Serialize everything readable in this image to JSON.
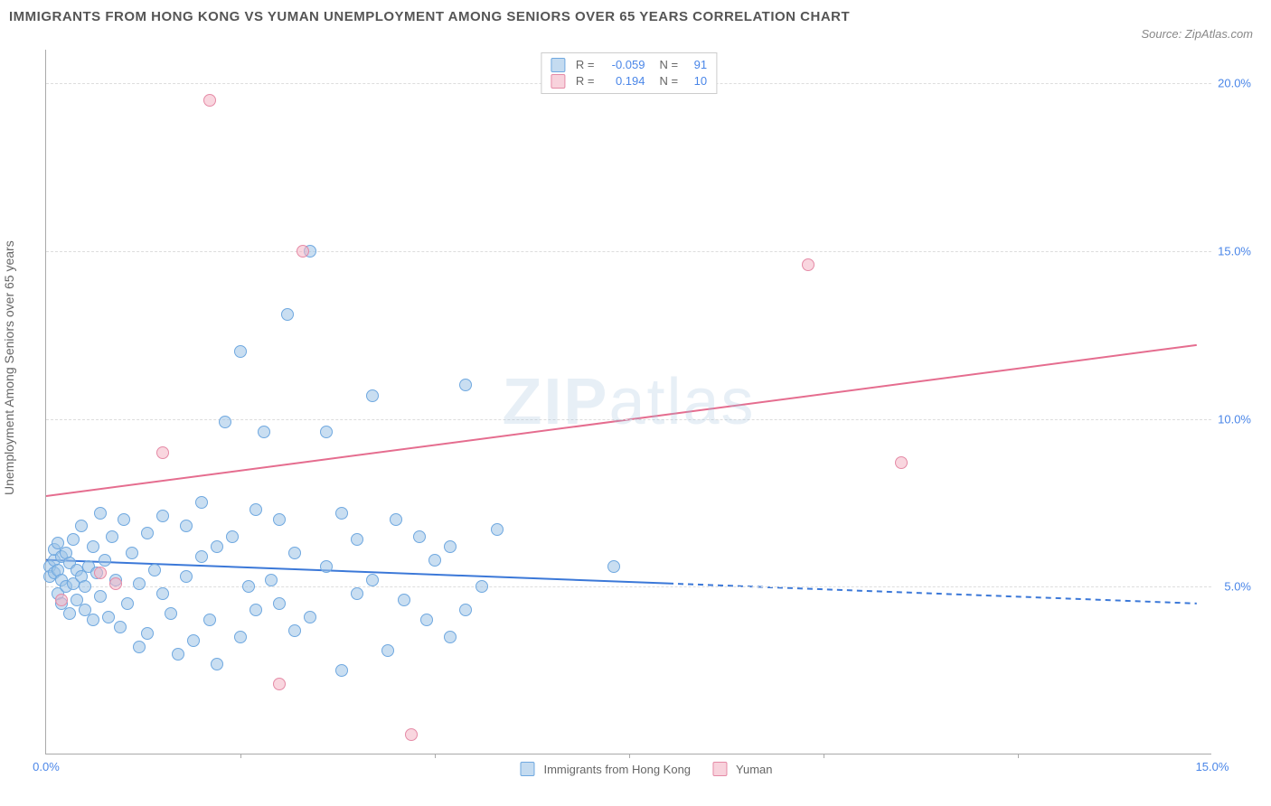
{
  "title": "IMMIGRANTS FROM HONG KONG VS YUMAN UNEMPLOYMENT AMONG SENIORS OVER 65 YEARS CORRELATION CHART",
  "source": "Source: ZipAtlas.com",
  "watermark_a": "ZIP",
  "watermark_b": "atlas",
  "chart": {
    "type": "scatter",
    "background_color": "#ffffff",
    "grid_color": "#dddddd",
    "axis_color": "#aaaaaa",
    "tick_color": "#4a86e8",
    "tick_fontsize": 13,
    "ylabel": "Unemployment Among Seniors over 65 years",
    "ylabel_fontsize": 14,
    "ylabel_color": "#666666",
    "xlim": [
      0,
      15
    ],
    "ylim": [
      0,
      21
    ],
    "yticks": [
      5.0,
      10.0,
      15.0,
      20.0
    ],
    "ytick_labels": [
      "5.0%",
      "10.0%",
      "15.0%",
      "20.0%"
    ],
    "xticks": [
      0.0,
      15.0
    ],
    "xtick_labels": [
      "0.0%",
      "15.0%"
    ],
    "xtick_minor": [
      2.5,
      5.0,
      7.5,
      10.0,
      12.5
    ],
    "marker_size": 14,
    "series": {
      "blue": {
        "label": "Immigrants from Hong Kong",
        "color": "#9dc3e6",
        "border": "#6fa8e0",
        "R": "-0.059",
        "N": "91",
        "trend": {
          "x1": 0,
          "y1": 5.8,
          "x2": 14.8,
          "y2": 4.5,
          "solid_until_x": 8,
          "color": "#3b78d8",
          "width": 2
        },
        "points": [
          [
            0.05,
            5.6
          ],
          [
            0.05,
            5.3
          ],
          [
            0.1,
            5.8
          ],
          [
            0.1,
            5.4
          ],
          [
            0.1,
            6.1
          ],
          [
            0.15,
            5.5
          ],
          [
            0.15,
            4.8
          ],
          [
            0.15,
            6.3
          ],
          [
            0.2,
            5.2
          ],
          [
            0.2,
            5.9
          ],
          [
            0.2,
            4.5
          ],
          [
            0.25,
            6.0
          ],
          [
            0.25,
            5.0
          ],
          [
            0.3,
            5.7
          ],
          [
            0.3,
            4.2
          ],
          [
            0.35,
            6.4
          ],
          [
            0.35,
            5.1
          ],
          [
            0.4,
            4.6
          ],
          [
            0.4,
            5.5
          ],
          [
            0.45,
            5.3
          ],
          [
            0.45,
            6.8
          ],
          [
            0.5,
            5.0
          ],
          [
            0.5,
            4.3
          ],
          [
            0.55,
            5.6
          ],
          [
            0.6,
            4.0
          ],
          [
            0.6,
            6.2
          ],
          [
            0.65,
            5.4
          ],
          [
            0.7,
            4.7
          ],
          [
            0.7,
            7.2
          ],
          [
            0.75,
            5.8
          ],
          [
            0.8,
            4.1
          ],
          [
            0.85,
            6.5
          ],
          [
            0.9,
            5.2
          ],
          [
            0.95,
            3.8
          ],
          [
            1.0,
            7.0
          ],
          [
            1.05,
            4.5
          ],
          [
            1.1,
            6.0
          ],
          [
            1.2,
            3.2
          ],
          [
            1.2,
            5.1
          ],
          [
            1.3,
            3.6
          ],
          [
            1.3,
            6.6
          ],
          [
            1.4,
            5.5
          ],
          [
            1.5,
            4.8
          ],
          [
            1.5,
            7.1
          ],
          [
            1.6,
            4.2
          ],
          [
            1.7,
            3.0
          ],
          [
            1.8,
            5.3
          ],
          [
            1.8,
            6.8
          ],
          [
            1.9,
            3.4
          ],
          [
            2.0,
            5.9
          ],
          [
            2.0,
            7.5
          ],
          [
            2.1,
            4.0
          ],
          [
            2.2,
            6.2
          ],
          [
            2.2,
            2.7
          ],
          [
            2.3,
            9.9
          ],
          [
            2.4,
            6.5
          ],
          [
            2.5,
            3.5
          ],
          [
            2.5,
            12.0
          ],
          [
            2.6,
            5.0
          ],
          [
            2.7,
            4.3
          ],
          [
            2.7,
            7.3
          ],
          [
            2.8,
            9.6
          ],
          [
            2.9,
            5.2
          ],
          [
            3.0,
            4.5
          ],
          [
            3.0,
            7.0
          ],
          [
            3.1,
            13.1
          ],
          [
            3.2,
            6.0
          ],
          [
            3.2,
            3.7
          ],
          [
            3.4,
            15.0
          ],
          [
            3.4,
            4.1
          ],
          [
            3.6,
            5.6
          ],
          [
            3.6,
            9.6
          ],
          [
            3.8,
            7.2
          ],
          [
            3.8,
            2.5
          ],
          [
            4.0,
            4.8
          ],
          [
            4.0,
            6.4
          ],
          [
            4.2,
            5.2
          ],
          [
            4.2,
            10.7
          ],
          [
            4.4,
            3.1
          ],
          [
            4.5,
            7.0
          ],
          [
            4.6,
            4.6
          ],
          [
            4.8,
            6.5
          ],
          [
            4.9,
            4.0
          ],
          [
            5.0,
            5.8
          ],
          [
            5.2,
            6.2
          ],
          [
            5.2,
            3.5
          ],
          [
            5.4,
            4.3
          ],
          [
            5.4,
            11.0
          ],
          [
            5.6,
            5.0
          ],
          [
            5.8,
            6.7
          ],
          [
            7.3,
            5.6
          ]
        ]
      },
      "pink": {
        "label": "Yuman",
        "color": "#f4b4c4",
        "border": "#e58aa6",
        "R": "0.194",
        "N": "10",
        "trend": {
          "x1": 0,
          "y1": 7.7,
          "x2": 14.8,
          "y2": 12.2,
          "color": "#e56d8f",
          "width": 2
        },
        "points": [
          [
            0.2,
            4.6
          ],
          [
            0.7,
            5.4
          ],
          [
            0.9,
            5.1
          ],
          [
            1.5,
            9.0
          ],
          [
            2.1,
            19.5
          ],
          [
            3.0,
            2.1
          ],
          [
            3.3,
            15.0
          ],
          [
            4.7,
            0.6
          ],
          [
            9.8,
            14.6
          ],
          [
            11.0,
            8.7
          ]
        ]
      }
    }
  }
}
